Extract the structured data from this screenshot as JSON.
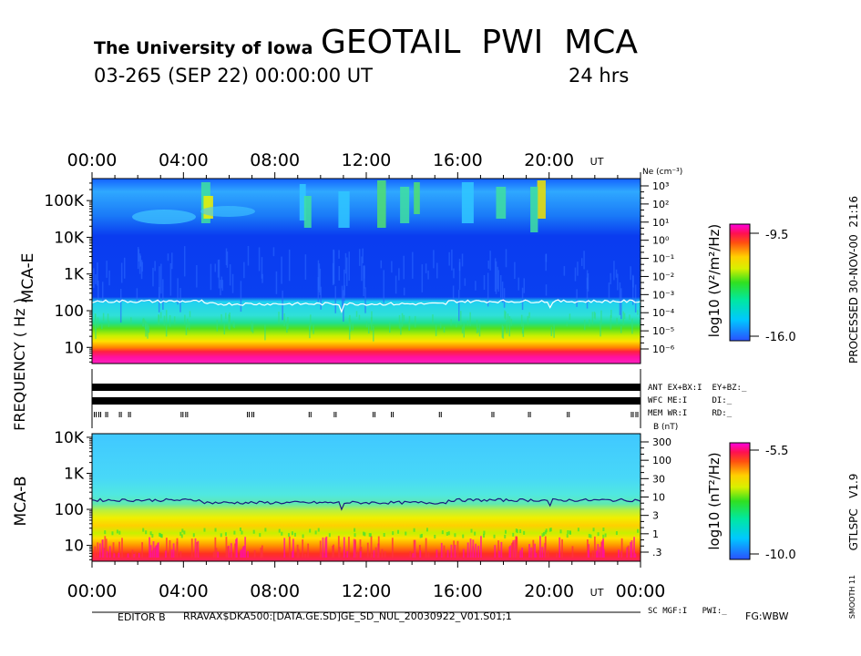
{
  "header": {
    "institution": "The University of Iowa",
    "title": "GEOTAIL  PWI  MCA",
    "date_line": "03-265 (SEP 22) 00:00:00 UT",
    "duration": "24 hrs"
  },
  "side": {
    "processed": "PROCESSED 30-NOV-00  21:16",
    "version": "GTLSPC   V1.9",
    "smooth": "SMOOTH 11"
  },
  "footer": {
    "editor": "EDITOR B",
    "path": "RRAVAX$DKA500:[DATA.GE.SD]GE_SD_NUL_20030922_V01.S01;1",
    "fg": "FG:WBW",
    "sc_line": "SC MGF:I   PWI:_"
  },
  "axis_label": "FREQUENCY ( Hz )",
  "status": {
    "ant": "ANT EX+BX:I  EY+BZ:_",
    "wfc": "WFC ME:I     DI:_",
    "mem": "MEM WR:I     RD:_"
  },
  "time_axis": {
    "ticks": [
      "00:00",
      "04:00",
      "08:00",
      "12:00",
      "16:00",
      "20:00",
      "00:00"
    ],
    "unit": "UT",
    "hours": [
      0,
      4,
      8,
      12,
      16,
      20,
      24
    ],
    "range_hours": [
      0,
      24
    ]
  },
  "mem_marks_hours": [
    0.1,
    0.3,
    0.6,
    1.2,
    1.6,
    3.9,
    4.1,
    6.8,
    7.0,
    9.5,
    10.6,
    12.3,
    13.1,
    15.2,
    17.5,
    19.1,
    20.8,
    23.6,
    23.8
  ],
  "chart_data": [
    {
      "type": "heatmap",
      "name": "MCA-E",
      "panel_label": "MCA-E",
      "xlabel": "UT",
      "ylabel": "FREQUENCY ( Hz )",
      "xlim": [
        0,
        24
      ],
      "ylim_log_hz": [
        0.56,
        5.6
      ],
      "y_tick_labels": [
        "100K",
        "10K",
        "1K",
        "100",
        "10"
      ],
      "y_tick_values_log": [
        5,
        4,
        3,
        2,
        1
      ],
      "colorbar": {
        "label": "log10 (V²/m²/Hz)",
        "max_label": "-9.5",
        "min_label": "-16.0",
        "range": [
          -16.0,
          -9.5
        ]
      },
      "right_axis": {
        "title": "Ne (cm⁻³)",
        "labels": [
          "10³",
          "10²",
          "10¹",
          "10⁰",
          "10⁻¹",
          "10⁻²",
          "10⁻³",
          "10⁻⁴",
          "10⁻⁵",
          "10⁻⁶"
        ],
        "log_values": [
          3,
          2,
          1,
          0,
          -1,
          -2,
          -3,
          -4,
          -5,
          -6
        ]
      },
      "trace_hz": 180
    },
    {
      "type": "heatmap",
      "name": "MCA-B",
      "panel_label": "MCA-B",
      "xlabel": "UT",
      "ylabel": "FREQUENCY ( Hz )",
      "xlim": [
        0,
        24
      ],
      "ylim_log_hz": [
        0.56,
        4.1
      ],
      "y_tick_labels": [
        "10K",
        "1K",
        "100",
        "10"
      ],
      "y_tick_values_log": [
        4,
        3,
        2,
        1
      ],
      "colorbar": {
        "label": "log10 (nT²/Hz)",
        "max_label": "-5.5",
        "min_label": "-10.0",
        "range": [
          -10.0,
          -5.5
        ]
      },
      "right_axis": {
        "title": "B (nT)",
        "labels": [
          "300",
          "100",
          "30",
          "10",
          "3",
          "1",
          ".3"
        ],
        "log_values": [
          2.477,
          2,
          1.477,
          1,
          0.477,
          0,
          -0.523
        ]
      },
      "trace_hz": 180
    }
  ]
}
